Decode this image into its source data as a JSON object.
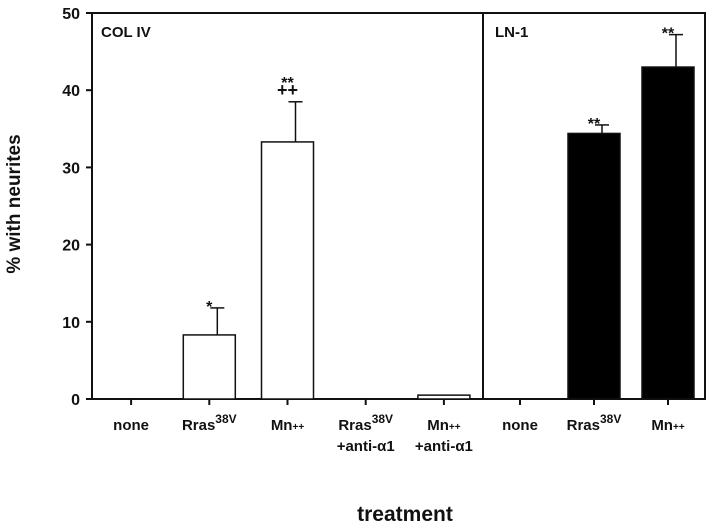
{
  "chart_data": {
    "type": "bar",
    "ylabel": "% with neurites",
    "xlabel": "treatment",
    "ylim": [
      0,
      50
    ],
    "yticks": [
      0,
      10,
      20,
      30,
      40,
      50
    ],
    "panels": [
      {
        "label": "COL IV",
        "fill": "#ffffff",
        "bars": [
          {
            "category": "none",
            "category_line2": "",
            "superscript": "",
            "value": 0,
            "error": 0,
            "annotation": "",
            "annotation2": ""
          },
          {
            "category": "Rras",
            "category_line2": "",
            "superscript": "38V",
            "value": 8.3,
            "error": 3.5,
            "annotation": "*",
            "annotation2": ""
          },
          {
            "category": "Mn++",
            "category_line2": "",
            "superscript": "",
            "value": 33.3,
            "error": 5.2,
            "annotation": "**",
            "annotation2": "++"
          },
          {
            "category": "Rras",
            "category_line2": "+anti-α1",
            "superscript": "38V",
            "value": 0,
            "error": 0,
            "annotation": "",
            "annotation2": ""
          },
          {
            "category": "Mn++",
            "category_line2": "+anti-α1",
            "superscript": "",
            "value": 0.5,
            "error": 0,
            "annotation": "",
            "annotation2": ""
          }
        ]
      },
      {
        "label": "LN-1",
        "fill": "#000000",
        "bars": [
          {
            "category": "none",
            "category_line2": "",
            "superscript": "",
            "value": 0,
            "error": 0,
            "annotation": "",
            "annotation2": ""
          },
          {
            "category": "Rras",
            "category_line2": "",
            "superscript": "38V",
            "value": 34.4,
            "error": 1.1,
            "annotation": "**",
            "annotation2": ""
          },
          {
            "category": "Mn++",
            "category_line2": "",
            "superscript": "",
            "value": 43.0,
            "error": 4.2,
            "annotation": "**",
            "annotation2": ""
          }
        ]
      }
    ]
  }
}
